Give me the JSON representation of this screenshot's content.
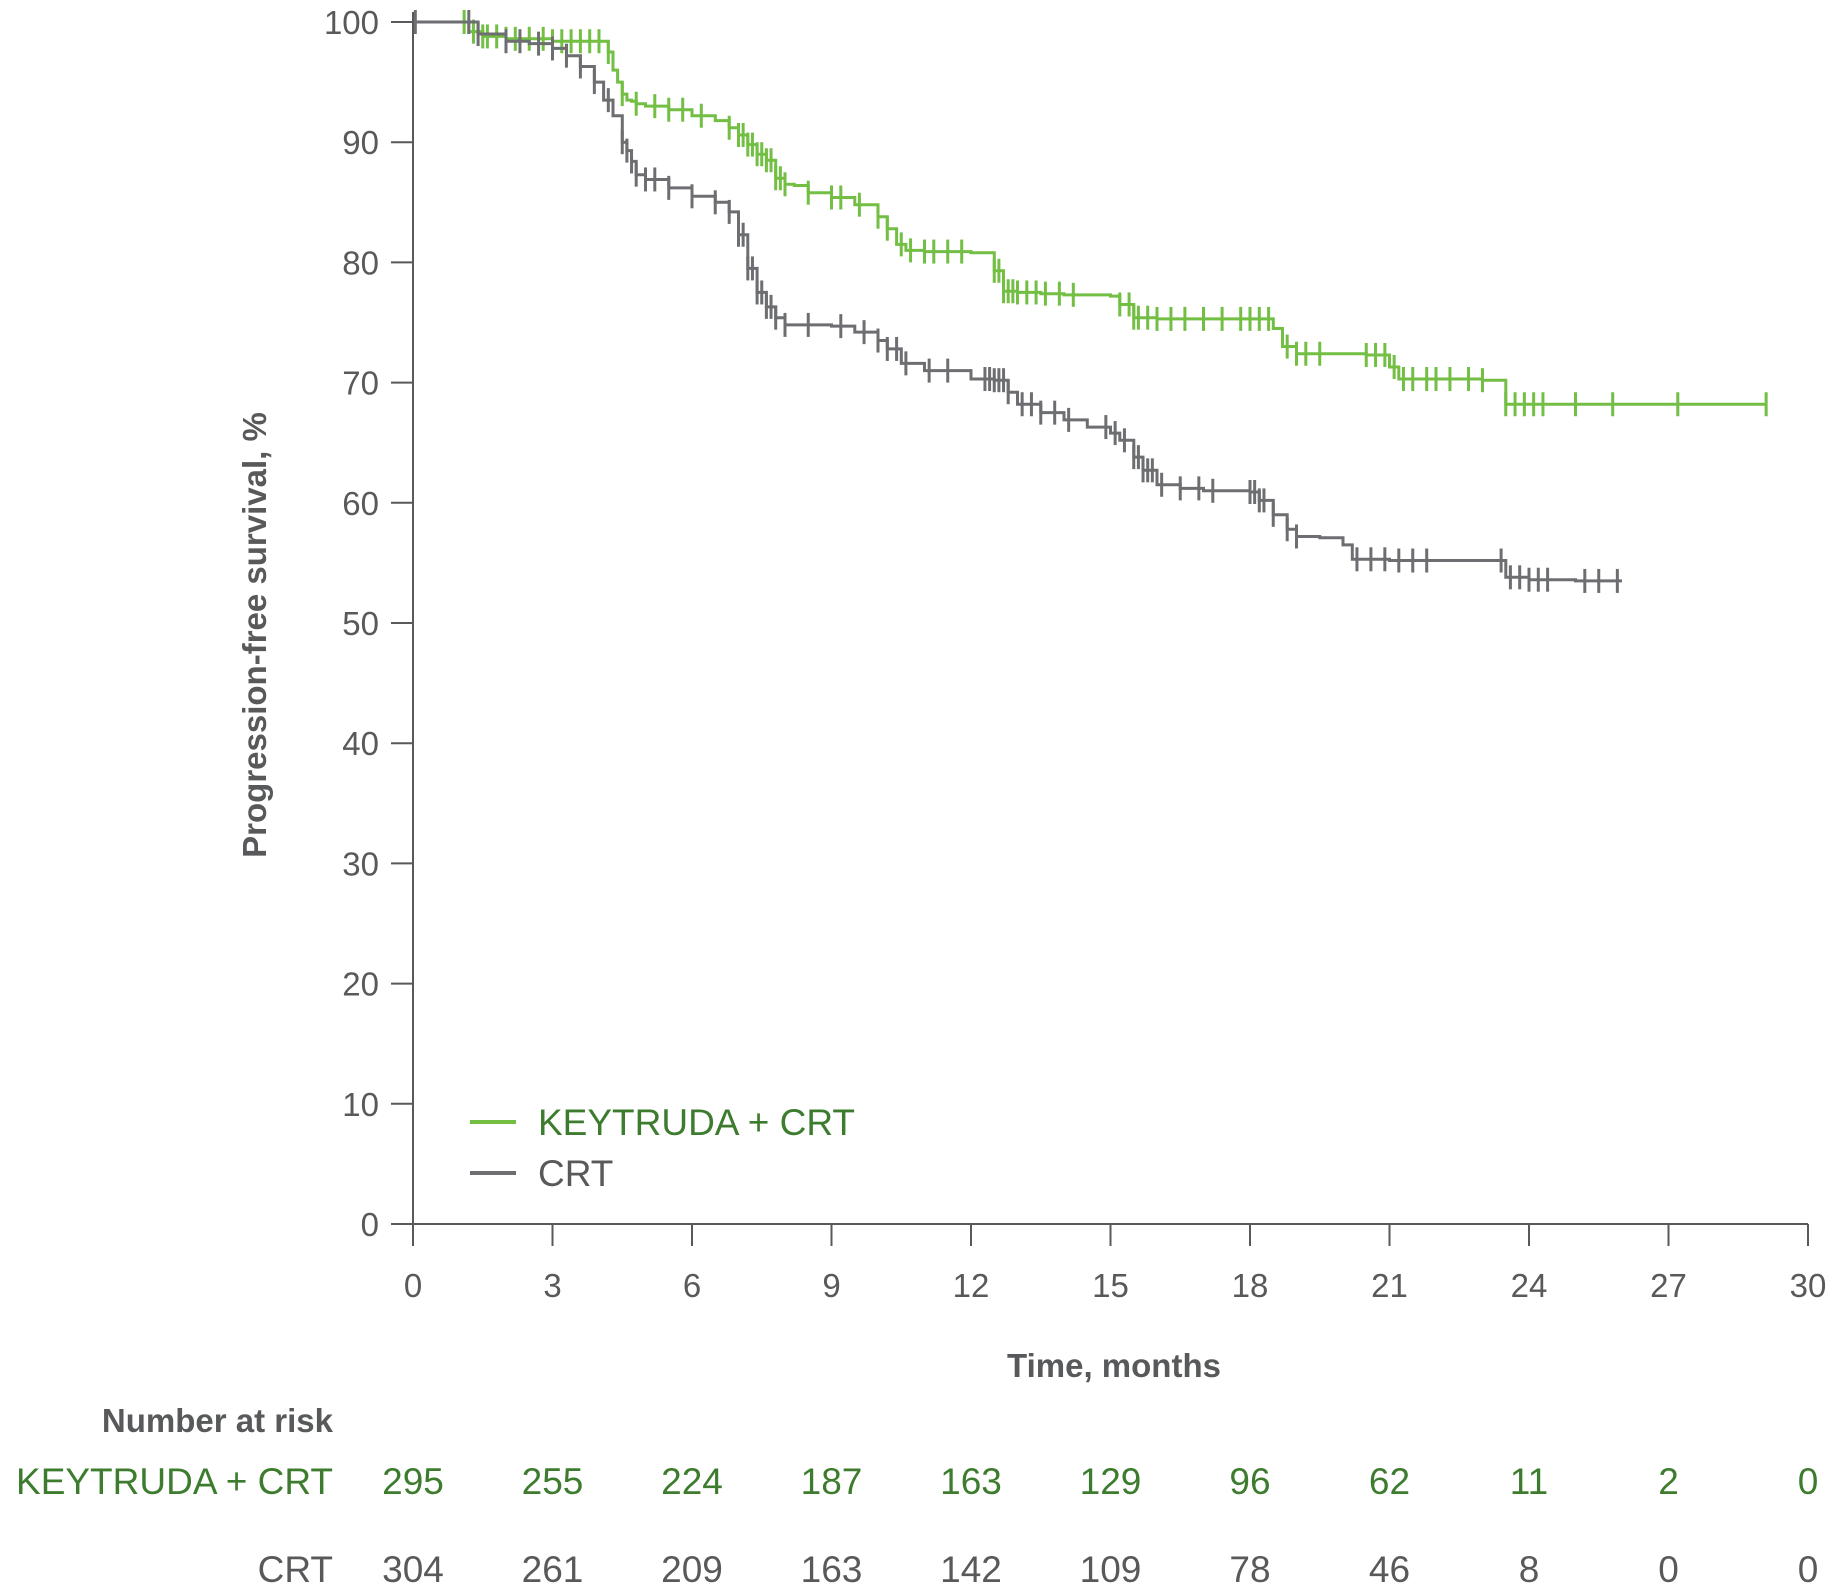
{
  "chart_data": {
    "type": "line",
    "subtype": "kaplan-meier",
    "title": "",
    "xlabel": "Time, months",
    "ylabel": "Progression-free survival, %",
    "xlim": [
      0,
      30
    ],
    "ylim": [
      0,
      100
    ],
    "xticks": [
      0,
      3,
      6,
      9,
      12,
      15,
      18,
      21,
      24,
      27,
      30
    ],
    "yticks": [
      0,
      10,
      20,
      30,
      40,
      50,
      60,
      70,
      80,
      90,
      100
    ],
    "grid": false,
    "legend_position": "bottom-left",
    "colors": {
      "keytruda": "#72bf44",
      "crt": "#6d6e71",
      "axis": "#58595b",
      "risk_keytruda": "#3d7c2e"
    },
    "series": [
      {
        "name": "KEYTRUDA + CRT",
        "key": "keytruda",
        "x": [
          0,
          1.1,
          1.2,
          1.5,
          2.0,
          2.5,
          3.0,
          3.5,
          4.0,
          4.2,
          4.3,
          4.4,
          4.5,
          4.6,
          4.7,
          4.8,
          5.0,
          5.5,
          6.0,
          6.5,
          6.8,
          7.0,
          7.2,
          7.4,
          7.6,
          7.8,
          8.0,
          8.2,
          8.5,
          9.0,
          9.5,
          10.0,
          10.2,
          10.4,
          10.6,
          11.0,
          11.5,
          12.0,
          12.5,
          12.7,
          13.0,
          13.5,
          14.0,
          15.0,
          15.2,
          15.5,
          16.0,
          17.0,
          18.0,
          18.5,
          18.7,
          19.0,
          20.0,
          20.5,
          21.0,
          21.2,
          22.0,
          23.0,
          23.5,
          24.0,
          25.0,
          27.0,
          29.1
        ],
        "y": [
          100,
          100,
          99.2,
          98.8,
          98.6,
          98.6,
          98.4,
          98.4,
          98.4,
          97.5,
          96.0,
          95.0,
          94.0,
          93.5,
          93.4,
          93.2,
          93.0,
          92.7,
          92.2,
          91.8,
          91.2,
          90.6,
          89.8,
          89.0,
          88.5,
          87.0,
          86.5,
          86.4,
          85.8,
          85.4,
          84.8,
          83.8,
          82.8,
          81.5,
          81.0,
          80.9,
          80.9,
          80.8,
          79.3,
          77.6,
          77.5,
          77.4,
          77.3,
          77.2,
          76.5,
          75.4,
          75.3,
          75.3,
          75.3,
          74.5,
          73.0,
          72.4,
          72.4,
          72.3,
          71.3,
          70.3,
          70.3,
          70.2,
          68.2,
          68.2,
          68.2,
          68.2,
          68.2
        ],
        "censor_times": [
          1.1,
          1.3,
          1.5,
          1.6,
          1.8,
          2.0,
          2.2,
          2.5,
          2.8,
          3.0,
          3.2,
          3.4,
          3.6,
          3.8,
          4.0,
          4.2,
          4.5,
          4.8,
          5.2,
          5.5,
          5.8,
          6.2,
          6.8,
          7.0,
          7.1,
          7.2,
          7.3,
          7.4,
          7.5,
          7.6,
          7.7,
          7.8,
          7.9,
          8.0,
          8.5,
          9.0,
          9.2,
          9.6,
          10.0,
          10.2,
          10.5,
          10.7,
          11.0,
          11.2,
          11.5,
          11.8,
          12.5,
          12.6,
          12.7,
          12.8,
          12.9,
          13.0,
          13.2,
          13.4,
          13.6,
          13.9,
          14.2,
          15.2,
          15.4,
          15.5,
          15.6,
          15.8,
          16.0,
          16.3,
          16.6,
          17.0,
          17.4,
          17.8,
          18.0,
          18.2,
          18.4,
          18.8,
          19.0,
          19.2,
          19.5,
          20.5,
          20.7,
          20.9,
          21.1,
          21.3,
          21.5,
          21.8,
          22.0,
          22.3,
          22.7,
          23.0,
          23.5,
          23.7,
          23.9,
          24.1,
          24.3,
          25.0,
          25.8,
          27.2,
          29.1
        ]
      },
      {
        "name": "CRT",
        "key": "crt",
        "x": [
          0,
          1.2,
          1.4,
          2.0,
          2.5,
          3.0,
          3.3,
          3.6,
          3.9,
          4.1,
          4.3,
          4.5,
          4.6,
          4.7,
          4.8,
          5.0,
          5.5,
          6.0,
          6.5,
          6.8,
          7.0,
          7.2,
          7.4,
          7.6,
          7.8,
          8.0,
          8.5,
          9.0,
          9.5,
          10.0,
          10.2,
          10.5,
          11.0,
          12.0,
          12.5,
          12.8,
          13.0,
          13.5,
          14.0,
          14.5,
          15.0,
          15.2,
          15.5,
          15.7,
          16.0,
          16.5,
          17.0,
          18.0,
          18.2,
          18.5,
          18.8,
          19.0,
          19.5,
          20.0,
          20.2,
          21.0,
          22.0,
          23.0,
          23.5,
          24.0,
          25.0,
          25.5,
          26.0
        ],
        "y": [
          100,
          100,
          99.0,
          98.4,
          98.2,
          97.8,
          97.2,
          96.3,
          95.0,
          93.5,
          92.2,
          90.0,
          89.3,
          88.4,
          87.3,
          86.9,
          86.2,
          85.5,
          85.0,
          84.2,
          82.3,
          79.5,
          77.5,
          76.3,
          75.4,
          74.8,
          74.8,
          74.7,
          74.2,
          73.5,
          72.8,
          71.6,
          71.0,
          70.3,
          70.2,
          69.2,
          68.2,
          67.5,
          66.9,
          66.3,
          65.8,
          65.2,
          63.8,
          62.7,
          61.5,
          61.2,
          61.0,
          60.9,
          60.2,
          59.0,
          57.8,
          57.2,
          57.1,
          56.5,
          55.3,
          55.2,
          55.2,
          55.2,
          53.8,
          53.6,
          53.5,
          53.5,
          53.5
        ],
        "censor_times": [
          0.05,
          1.2,
          1.4,
          2.0,
          2.3,
          2.7,
          3.0,
          3.3,
          3.6,
          3.9,
          4.2,
          4.5,
          4.6,
          4.7,
          4.8,
          5.0,
          5.2,
          5.5,
          6.0,
          6.5,
          6.8,
          7.0,
          7.1,
          7.2,
          7.3,
          7.4,
          7.5,
          7.6,
          7.7,
          7.8,
          8.0,
          8.5,
          9.2,
          9.7,
          10.0,
          10.2,
          10.4,
          10.6,
          11.1,
          11.5,
          12.3,
          12.4,
          12.5,
          12.6,
          12.7,
          12.8,
          13.1,
          13.3,
          13.5,
          13.8,
          14.1,
          14.9,
          15.1,
          15.3,
          15.5,
          15.6,
          15.7,
          15.8,
          15.9,
          16.1,
          16.5,
          16.9,
          17.2,
          18.0,
          18.1,
          18.2,
          18.3,
          18.5,
          18.8,
          19.0,
          20.3,
          20.6,
          20.9,
          21.2,
          21.5,
          21.8,
          23.4,
          23.6,
          23.8,
          24.0,
          24.2,
          24.4,
          25.2,
          25.5,
          25.9
        ]
      }
    ],
    "legend": [
      {
        "label": "KEYTRUDA + CRT",
        "key": "keytruda"
      },
      {
        "label": "CRT",
        "key": "crt"
      }
    ],
    "risk_table": {
      "title": "Number at risk",
      "times": [
        0,
        3,
        6,
        9,
        12,
        15,
        18,
        21,
        24,
        27,
        30
      ],
      "rows": [
        {
          "label": "KEYTRUDA + CRT",
          "key": "keytruda",
          "values": [
            295,
            255,
            224,
            187,
            163,
            129,
            96,
            62,
            11,
            2,
            0
          ]
        },
        {
          "label": "CRT",
          "key": "crt",
          "values": [
            304,
            261,
            209,
            163,
            142,
            109,
            78,
            46,
            8,
            0,
            0
          ]
        }
      ]
    }
  }
}
